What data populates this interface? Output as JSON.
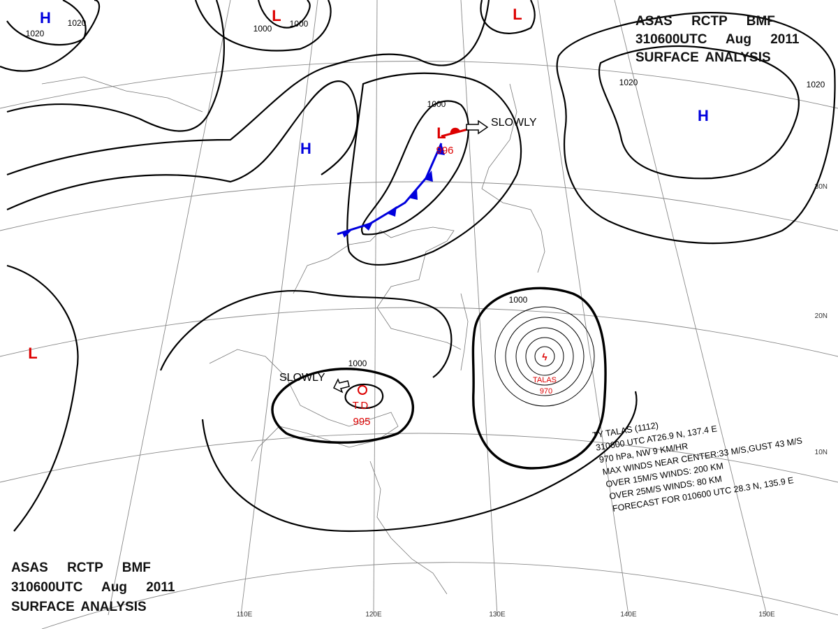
{
  "header_top": {
    "lines": [
      "ASAS RCTP BMF",
      "310600UTC Aug 2011",
      "SURFACE ANALYSIS"
    ]
  },
  "header_bottom": {
    "lines": [
      "ASAS RCTP BMF",
      "310600UTC Aug 2011",
      "SURFACE ANALYSIS"
    ]
  },
  "highs": [
    "H",
    "H",
    "H"
  ],
  "lows": [
    {
      "label": "L"
    },
    {
      "label": "L"
    },
    {
      "label": "L",
      "pressure": "996"
    },
    {
      "label": "L"
    }
  ],
  "tropical_depression": {
    "label": "T.D.",
    "pressure": "995"
  },
  "typhoon": {
    "name": "TALAS",
    "pressure": "970",
    "info": [
      "TY TALAS (1112)",
      "310600 UTC AT26.9 N, 137.4 E",
      "970 hPa, NW 9 KM/HR",
      "MAX WINDS NEAR CENTER:33 M/S,GUST 43 M/S",
      "OVER 15M/S WINDS: 200 KM",
      "OVER 25M/S WINDS: 80 KM",
      "FORECAST FOR 010600 UTC 28.3 N, 135.9 E"
    ]
  },
  "movements": [
    "SLOWLY",
    "SLOWLY"
  ],
  "isobar_labels": [
    "1020",
    "1020",
    "1000",
    "1000",
    "1000",
    "1020",
    "1020",
    "1000",
    "1000"
  ],
  "graticule": {
    "longitudes": [
      "110E",
      "120E",
      "130E",
      "140E",
      "150E"
    ],
    "latitudes": [
      "30N",
      "20N",
      "10N"
    ]
  }
}
